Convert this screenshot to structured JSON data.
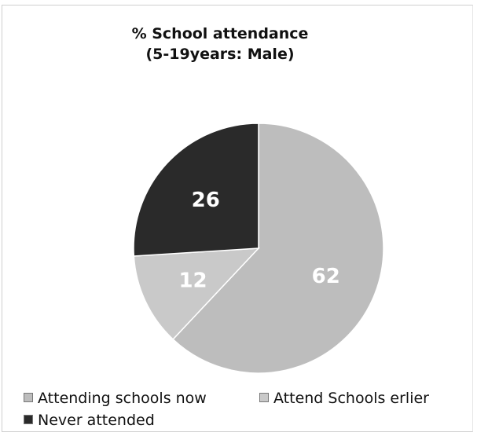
{
  "chart_data": {
    "type": "pie",
    "title_line1": "% School attendance",
    "title_line2": "(5-19years: Male)",
    "categories": [
      "Attending schools now",
      "Attend Schools erlier",
      "Never attended"
    ],
    "values": [
      62,
      12,
      26
    ],
    "colors": [
      "#bdbdbd",
      "#c9c9c9",
      "#2a2a2a"
    ],
    "label_color": "#ffffff",
    "legend_placement": "bottom"
  }
}
